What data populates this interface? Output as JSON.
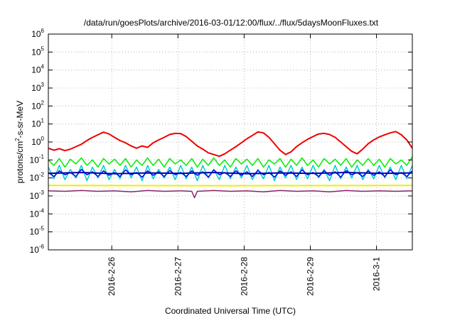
{
  "chart_data": {
    "type": "line",
    "title": "/data/run/goesPlots/archive/2016-03-01/12:00/flux/../flux/5daysMoonFluxes.txt",
    "xlabel": "Coordinated Universal Time (UTC)",
    "ylabel": {
      "prefix": "protons/cm",
      "sup": "2",
      "suffix": "-s-sr-MeV"
    },
    "y_scale": "log",
    "ylim": [
      1e-06,
      1000000.0
    ],
    "y_ticks": [
      {
        "value": 1e-06,
        "base": "10",
        "exp": "-6"
      },
      {
        "value": 1e-05,
        "base": "10",
        "exp": "-5"
      },
      {
        "value": 0.0001,
        "base": "10",
        "exp": "-4"
      },
      {
        "value": 0.001,
        "base": "10",
        "exp": "-3"
      },
      {
        "value": 0.01,
        "base": "10",
        "exp": "-2"
      },
      {
        "value": 0.1,
        "base": "10",
        "exp": "-1"
      },
      {
        "value": 1.0,
        "base": "10",
        "exp": "0"
      },
      {
        "value": 10.0,
        "base": "10",
        "exp": "1"
      },
      {
        "value": 100.0,
        "base": "10",
        "exp": "2"
      },
      {
        "value": 1000.0,
        "base": "10",
        "exp": "3"
      },
      {
        "value": 10000.0,
        "base": "10",
        "exp": "4"
      },
      {
        "value": 100000.0,
        "base": "10",
        "exp": "5"
      },
      {
        "value": 1000000.0,
        "base": "10",
        "exp": "6"
      }
    ],
    "xlim": [
      "2016-02-25T01:00",
      "2016-03-01T13:00"
    ],
    "x_ticks": [
      {
        "label": "2016-2-26",
        "value": "2016-02-26T00:00"
      },
      {
        "label": "2016-2-27",
        "value": "2016-02-27T00:00"
      },
      {
        "label": "2016-2-28",
        "value": "2016-02-28T00:00"
      },
      {
        "label": "2016-2-29",
        "value": "2016-02-29T00:00"
      },
      {
        "label": "2016-3-1",
        "value": "2016-03-01T00:00"
      }
    ],
    "grid": true,
    "series": [
      {
        "color": "#ee0000",
        "width": 2,
        "x": [
          "2016-02-25T01:00",
          "2016-02-25T03:00",
          "2016-02-25T05:00",
          "2016-02-25T07:00",
          "2016-02-25T09:00",
          "2016-02-25T11:00",
          "2016-02-25T13:00",
          "2016-02-25T15:00",
          "2016-02-25T17:00",
          "2016-02-25T19:00",
          "2016-02-25T21:00",
          "2016-02-25T23:00",
          "2016-02-26T01:00",
          "2016-02-26T03:00",
          "2016-02-26T05:00",
          "2016-02-26T07:00",
          "2016-02-26T09:00",
          "2016-02-26T11:00",
          "2016-02-26T13:00",
          "2016-02-26T15:00",
          "2016-02-26T17:00",
          "2016-02-26T19:00",
          "2016-02-26T21:00",
          "2016-02-26T23:00",
          "2016-02-27T01:00",
          "2016-02-27T03:00",
          "2016-02-27T05:00",
          "2016-02-27T07:00",
          "2016-02-27T09:00",
          "2016-02-27T11:00",
          "2016-02-27T13:00",
          "2016-02-27T15:00",
          "2016-02-27T17:00",
          "2016-02-27T19:00",
          "2016-02-27T21:00",
          "2016-02-27T23:00",
          "2016-02-28T01:00",
          "2016-02-28T03:00",
          "2016-02-28T05:00",
          "2016-02-28T07:00",
          "2016-02-28T09:00",
          "2016-02-28T11:00",
          "2016-02-28T13:00",
          "2016-02-28T15:00",
          "2016-02-28T17:00",
          "2016-02-28T19:00",
          "2016-02-28T21:00",
          "2016-02-28T23:00",
          "2016-02-29T01:00",
          "2016-02-29T03:00",
          "2016-02-29T05:00",
          "2016-02-29T07:00",
          "2016-02-29T09:00",
          "2016-02-29T11:00",
          "2016-02-29T13:00",
          "2016-02-29T15:00",
          "2016-02-29T17:00",
          "2016-02-29T19:00",
          "2016-02-29T21:00",
          "2016-02-29T23:00",
          "2016-03-01T01:00",
          "2016-03-01T03:00",
          "2016-03-01T05:00",
          "2016-03-01T07:00",
          "2016-03-01T09:00",
          "2016-03-01T11:00",
          "2016-03-01T13:00"
        ],
        "y": [
          0.45,
          0.35,
          0.42,
          0.33,
          0.4,
          0.55,
          0.75,
          1.2,
          1.8,
          2.5,
          3.5,
          2.8,
          1.8,
          1.2,
          0.9,
          0.6,
          0.45,
          0.6,
          0.5,
          0.9,
          1.3,
          1.8,
          2.6,
          3.0,
          2.9,
          2.0,
          1.1,
          0.6,
          0.4,
          0.25,
          0.2,
          0.16,
          0.22,
          0.35,
          0.55,
          0.9,
          1.5,
          2.3,
          3.6,
          3.2,
          1.8,
          0.8,
          0.35,
          0.2,
          0.28,
          0.55,
          0.9,
          1.4,
          2.0,
          2.8,
          3.0,
          2.6,
          1.8,
          1.0,
          0.55,
          0.3,
          0.22,
          0.4,
          0.8,
          1.3,
          1.9,
          2.5,
          3.2,
          3.8,
          2.5,
          1.3,
          0.45
        ]
      },
      {
        "color": "#00ee00",
        "width": 1.5,
        "x": [
          "2016-02-25T01:00",
          "2016-02-25T03:00",
          "2016-02-25T05:00",
          "2016-02-25T07:00",
          "2016-02-25T09:00",
          "2016-02-25T11:00",
          "2016-02-25T13:00",
          "2016-02-25T15:00",
          "2016-02-25T17:00",
          "2016-02-25T19:00",
          "2016-02-25T21:00",
          "2016-02-25T23:00",
          "2016-02-26T01:00",
          "2016-02-26T03:00",
          "2016-02-26T05:00",
          "2016-02-26T07:00",
          "2016-02-26T09:00",
          "2016-02-26T11:00",
          "2016-02-26T13:00",
          "2016-02-26T15:00",
          "2016-02-26T17:00",
          "2016-02-26T19:00",
          "2016-02-26T21:00",
          "2016-02-26T23:00",
          "2016-02-27T01:00",
          "2016-02-27T03:00",
          "2016-02-27T05:00",
          "2016-02-27T07:00",
          "2016-02-27T09:00",
          "2016-02-27T11:00",
          "2016-02-27T13:00",
          "2016-02-27T15:00",
          "2016-02-27T17:00",
          "2016-02-27T19:00",
          "2016-02-27T21:00",
          "2016-02-27T23:00",
          "2016-02-28T01:00",
          "2016-02-28T03:00",
          "2016-02-28T05:00",
          "2016-02-28T07:00",
          "2016-02-28T09:00",
          "2016-02-28T11:00",
          "2016-02-28T13:00",
          "2016-02-28T15:00",
          "2016-02-28T17:00",
          "2016-02-28T19:00",
          "2016-02-28T21:00",
          "2016-02-28T23:00",
          "2016-02-29T01:00",
          "2016-02-29T03:00",
          "2016-02-29T05:00",
          "2016-02-29T07:00",
          "2016-02-29T09:00",
          "2016-02-29T11:00",
          "2016-02-29T13:00",
          "2016-02-29T15:00",
          "2016-02-29T17:00",
          "2016-02-29T19:00",
          "2016-02-29T21:00",
          "2016-02-29T23:00",
          "2016-03-01T01:00",
          "2016-03-01T03:00",
          "2016-03-01T05:00",
          "2016-03-01T07:00",
          "2016-03-01T09:00",
          "2016-03-01T11:00",
          "2016-03-01T13:00"
        ],
        "y": [
          0.1,
          0.05,
          0.12,
          0.04,
          0.11,
          0.06,
          0.13,
          0.05,
          0.1,
          0.04,
          0.12,
          0.06,
          0.11,
          0.05,
          0.12,
          0.04,
          0.1,
          0.05,
          0.13,
          0.05,
          0.11,
          0.04,
          0.12,
          0.06,
          0.1,
          0.05,
          0.12,
          0.04,
          0.11,
          0.05,
          0.13,
          0.05,
          0.1,
          0.04,
          0.12,
          0.06,
          0.11,
          0.05,
          0.12,
          0.04,
          0.1,
          0.06,
          0.12,
          0.04,
          0.11,
          0.05,
          0.13,
          0.05,
          0.1,
          0.04,
          0.12,
          0.06,
          0.11,
          0.05,
          0.12,
          0.04,
          0.1,
          0.05,
          0.12,
          0.05,
          0.11,
          0.04,
          0.12,
          0.06,
          0.1,
          0.05,
          0.15
        ]
      },
      {
        "color": "#00cccc",
        "width": 1.5,
        "x": [
          "2016-02-25T01:00",
          "2016-02-25T03:00",
          "2016-02-25T05:00",
          "2016-02-25T07:00",
          "2016-02-25T09:00",
          "2016-02-25T11:00",
          "2016-02-25T13:00",
          "2016-02-25T15:00",
          "2016-02-25T17:00",
          "2016-02-25T19:00",
          "2016-02-25T21:00",
          "2016-02-25T23:00",
          "2016-02-26T01:00",
          "2016-02-26T03:00",
          "2016-02-26T05:00",
          "2016-02-26T07:00",
          "2016-02-26T09:00",
          "2016-02-26T11:00",
          "2016-02-26T13:00",
          "2016-02-26T15:00",
          "2016-02-26T17:00",
          "2016-02-26T19:00",
          "2016-02-26T21:00",
          "2016-02-26T23:00",
          "2016-02-27T01:00",
          "2016-02-27T03:00",
          "2016-02-27T05:00",
          "2016-02-27T07:00",
          "2016-02-27T09:00",
          "2016-02-27T11:00",
          "2016-02-27T13:00",
          "2016-02-27T15:00",
          "2016-02-27T17:00",
          "2016-02-27T19:00",
          "2016-02-27T21:00",
          "2016-02-27T23:00",
          "2016-02-28T01:00",
          "2016-02-28T03:00",
          "2016-02-28T05:00",
          "2016-02-28T07:00",
          "2016-02-28T09:00",
          "2016-02-28T11:00",
          "2016-02-28T13:00",
          "2016-02-28T15:00",
          "2016-02-28T17:00",
          "2016-02-28T19:00",
          "2016-02-28T21:00",
          "2016-02-28T23:00",
          "2016-02-29T01:00",
          "2016-02-29T03:00",
          "2016-02-29T05:00",
          "2016-02-29T07:00",
          "2016-02-29T09:00",
          "2016-02-29T11:00",
          "2016-02-29T13:00",
          "2016-02-29T15:00",
          "2016-02-29T17:00",
          "2016-02-29T19:00",
          "2016-02-29T21:00",
          "2016-02-29T23:00",
          "2016-03-01T01:00",
          "2016-03-01T03:00",
          "2016-03-01T05:00",
          "2016-03-01T07:00",
          "2016-03-01T09:00",
          "2016-03-01T11:00",
          "2016-03-01T13:00"
        ],
        "y": [
          0.04,
          0.009,
          0.05,
          0.008,
          0.03,
          0.01,
          0.05,
          0.007,
          0.04,
          0.01,
          0.05,
          0.008,
          0.03,
          0.009,
          0.05,
          0.01,
          0.04,
          0.007,
          0.05,
          0.009,
          0.03,
          0.01,
          0.04,
          0.008,
          0.05,
          0.009,
          0.04,
          0.007,
          0.05,
          0.01,
          0.03,
          0.008,
          0.05,
          0.009,
          0.04,
          0.01,
          0.05,
          0.008,
          0.03,
          0.009,
          0.05,
          0.007,
          0.04,
          0.01,
          0.05,
          0.008,
          0.04,
          0.009,
          0.05,
          0.01,
          0.03,
          0.007,
          0.05,
          0.009,
          0.04,
          0.01,
          0.05,
          0.008,
          0.03,
          0.009,
          0.05,
          0.01,
          0.04,
          0.008,
          0.05,
          0.009,
          0.05
        ]
      },
      {
        "color": "#0000ee",
        "width": 1.5,
        "x": [
          "2016-02-25T01:00",
          "2016-02-25T03:00",
          "2016-02-25T05:00",
          "2016-02-25T07:00",
          "2016-02-25T09:00",
          "2016-02-25T11:00",
          "2016-02-25T13:00",
          "2016-02-25T15:00",
          "2016-02-25T17:00",
          "2016-02-25T19:00",
          "2016-02-25T21:00",
          "2016-02-25T23:00",
          "2016-02-26T01:00",
          "2016-02-26T03:00",
          "2016-02-26T05:00",
          "2016-02-26T07:00",
          "2016-02-26T09:00",
          "2016-02-26T11:00",
          "2016-02-26T13:00",
          "2016-02-26T15:00",
          "2016-02-26T17:00",
          "2016-02-26T19:00",
          "2016-02-26T21:00",
          "2016-02-26T23:00",
          "2016-02-27T01:00",
          "2016-02-27T03:00",
          "2016-02-27T05:00",
          "2016-02-27T07:00",
          "2016-02-27T09:00",
          "2016-02-27T11:00",
          "2016-02-27T13:00",
          "2016-02-27T15:00",
          "2016-02-27T17:00",
          "2016-02-27T19:00",
          "2016-02-27T21:00",
          "2016-02-27T23:00",
          "2016-02-28T01:00",
          "2016-02-28T03:00",
          "2016-02-28T05:00",
          "2016-02-28T07:00",
          "2016-02-28T09:00",
          "2016-02-28T11:00",
          "2016-02-28T13:00",
          "2016-02-28T15:00",
          "2016-02-28T17:00",
          "2016-02-28T19:00",
          "2016-02-28T21:00",
          "2016-02-28T23:00",
          "2016-02-29T01:00",
          "2016-02-29T03:00",
          "2016-02-29T05:00",
          "2016-02-29T07:00",
          "2016-02-29T09:00",
          "2016-02-29T11:00",
          "2016-02-29T13:00",
          "2016-02-29T15:00",
          "2016-02-29T17:00",
          "2016-02-29T19:00",
          "2016-02-29T21:00",
          "2016-02-29T23:00",
          "2016-03-01T01:00",
          "2016-03-01T03:00",
          "2016-03-01T05:00",
          "2016-03-01T07:00",
          "2016-03-01T09:00",
          "2016-03-01T11:00",
          "2016-03-01T13:00"
        ],
        "y": [
          0.02,
          0.012,
          0.025,
          0.015,
          0.02,
          0.012,
          0.03,
          0.015,
          0.022,
          0.012,
          0.025,
          0.014,
          0.02,
          0.012,
          0.028,
          0.015,
          0.02,
          0.011,
          0.025,
          0.014,
          0.022,
          0.012,
          0.026,
          0.015,
          0.02,
          0.012,
          0.025,
          0.014,
          0.022,
          0.011,
          0.028,
          0.015,
          0.02,
          0.012,
          0.025,
          0.014,
          0.022,
          0.012,
          0.026,
          0.015,
          0.02,
          0.011,
          0.025,
          0.014,
          0.022,
          0.012,
          0.028,
          0.015,
          0.02,
          0.012,
          0.025,
          0.014,
          0.022,
          0.011,
          0.026,
          0.015,
          0.02,
          0.012,
          0.025,
          0.014,
          0.022,
          0.012,
          0.028,
          0.015,
          0.02,
          0.012,
          0.025
        ]
      },
      {
        "color": "#0000aa",
        "width": 2,
        "x": [
          "2016-02-25T01:00",
          "2016-02-25T13:00",
          "2016-02-26T01:00",
          "2016-02-26T13:00",
          "2016-02-27T01:00",
          "2016-02-27T13:00",
          "2016-02-28T01:00",
          "2016-02-28T13:00",
          "2016-02-29T01:00",
          "2016-02-29T13:00",
          "2016-03-01T01:00",
          "2016-03-01T13:00"
        ],
        "y": [
          0.018,
          0.02,
          0.017,
          0.019,
          0.018,
          0.02,
          0.017,
          0.019,
          0.018,
          0.02,
          0.018,
          0.019
        ]
      },
      {
        "color": "#eeee00",
        "width": 2,
        "x": [
          "2016-02-25T01:00",
          "2016-02-27T13:00",
          "2016-03-01T13:00"
        ],
        "y": [
          0.0038,
          0.0037,
          0.0038
        ]
      },
      {
        "color": "#882266",
        "width": 1.5,
        "x": [
          "2016-02-25T01:00",
          "2016-02-25T07:00",
          "2016-02-25T13:00",
          "2016-02-25T19:00",
          "2016-02-26T01:00",
          "2016-02-26T07:00",
          "2016-02-26T13:00",
          "2016-02-26T19:00",
          "2016-02-27T01:00",
          "2016-02-27T05:00",
          "2016-02-27T06:00",
          "2016-02-27T07:00",
          "2016-02-27T13:00",
          "2016-02-27T19:00",
          "2016-02-28T01:00",
          "2016-02-28T07:00",
          "2016-02-28T13:00",
          "2016-02-28T19:00",
          "2016-02-29T01:00",
          "2016-02-29T07:00",
          "2016-02-29T13:00",
          "2016-02-29T19:00",
          "2016-03-01T01:00",
          "2016-03-01T07:00",
          "2016-03-01T13:00"
        ],
        "y": [
          0.0019,
          0.0018,
          0.002,
          0.0018,
          0.0019,
          0.0017,
          0.002,
          0.0018,
          0.0019,
          0.0018,
          0.0008,
          0.0018,
          0.002,
          0.0018,
          0.0019,
          0.0017,
          0.002,
          0.0018,
          0.0019,
          0.0017,
          0.002,
          0.0018,
          0.0019,
          0.0018,
          0.0019
        ]
      }
    ]
  }
}
